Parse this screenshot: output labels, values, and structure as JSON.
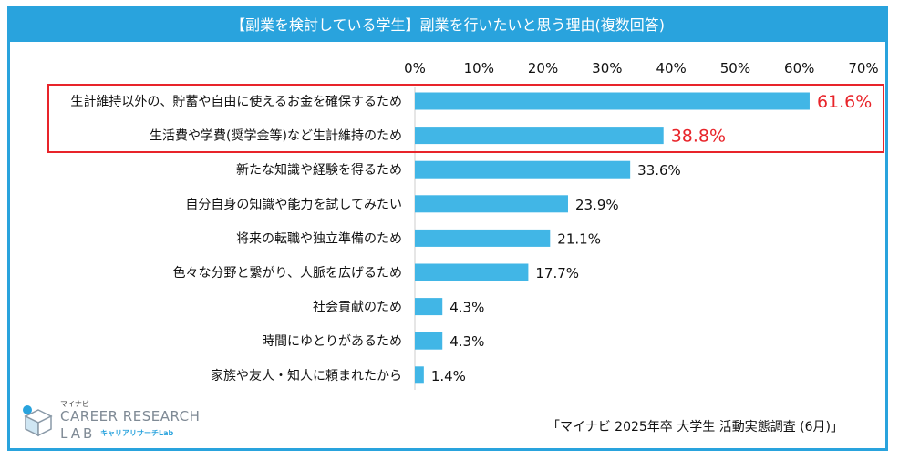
{
  "title": "【副業を検討している学生】副業を行いたいと思う理由(複数回答)",
  "source": "「マイナビ 2025年卒 大学生 活動実態調査 (6月)」",
  "logo": {
    "top": "マイナビ",
    "line1": "CAREER RESEARCH",
    "line2": "LAB",
    "sub": "キャリアリサーチLab"
  },
  "colors": {
    "bar": "#41b6e6",
    "highlight": "#e8242a",
    "header": "#29a3dd",
    "text": "#111111"
  },
  "chart_data": {
    "type": "bar",
    "orientation": "horizontal",
    "categories": [
      "生計維持以外の、貯蓄や自由に使えるお金を確保するため",
      "生活費や学費(奨学金等)など生計維持のため",
      "新たな知識や経験を得るため",
      "自分自身の知識や能力を試してみたい",
      "将来の転職や独立準備のため",
      "色々な分野と繋がり、人脈を広げるため",
      "社会貢献のため",
      "時間にゆとりがあるため",
      "家族や友人・知人に頼まれたから"
    ],
    "values": [
      61.6,
      38.8,
      33.6,
      23.9,
      21.1,
      17.7,
      4.3,
      4.3,
      1.4
    ],
    "value_labels": [
      "61.6%",
      "38.8%",
      "33.6%",
      "23.9%",
      "21.1%",
      "17.7%",
      "4.3%",
      "4.3%",
      "1.4%"
    ],
    "highlighted": [
      0,
      1
    ],
    "xlim": [
      0,
      70
    ],
    "ticks": [
      "0%",
      "10%",
      "20%",
      "30%",
      "40%",
      "50%",
      "60%",
      "70%"
    ],
    "tick_values": [
      0,
      10,
      20,
      30,
      40,
      50,
      60,
      70
    ],
    "grid": false,
    "title": "【副業を検討している学生】副業を行いたいと思う理由(複数回答)",
    "xlabel": "",
    "ylabel": ""
  }
}
